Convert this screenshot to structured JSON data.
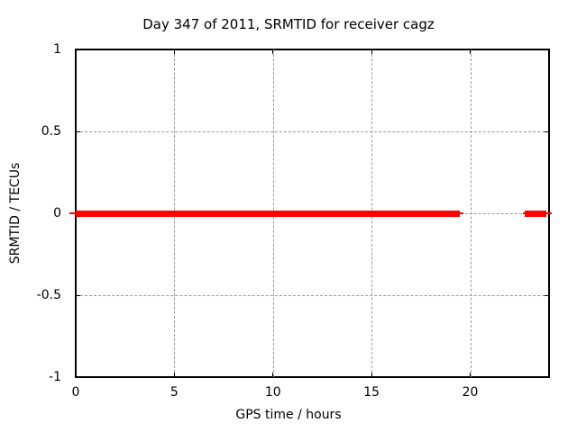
{
  "chart_data": {
    "type": "line",
    "title": "Day 347 of 2011, SRMTID for receiver cagz",
    "xlabel": "GPS time / hours",
    "ylabel": "SRMTID / TECUs",
    "xlim": [
      0,
      24
    ],
    "ylim": [
      -1,
      1
    ],
    "xticks": {
      "values": [
        0,
        5,
        10,
        15,
        20
      ],
      "labels": [
        "0",
        "5",
        "10",
        "15",
        "20"
      ]
    },
    "yticks": {
      "values": [
        1,
        0.5,
        0,
        -0.5,
        -1
      ],
      "labels": [
        "1",
        "0.5",
        "0",
        "-0.5",
        "-1"
      ]
    },
    "grid": true,
    "grid_x": [
      5,
      10,
      15,
      20
    ],
    "grid_y": [
      0.5,
      0,
      -0.5
    ],
    "legend": "none",
    "series": [
      {
        "name": "SRMTID",
        "color": "#ff0000",
        "style": "thick horizontal segments with thin whisker ends, constant value",
        "segments": [
          {
            "y": 0,
            "x": [
              0,
              19.48
            ],
            "whisker_x": [
              -0.32,
              19.66
            ]
          },
          {
            "y": 0,
            "x": [
              22.77,
              23.87
            ],
            "whisker_x": [
              22.67,
              24.14
            ]
          }
        ]
      }
    ],
    "colors": {
      "line": "#ff0000",
      "grid": "#999999",
      "border": "#000000",
      "background": "#ffffff",
      "text": "#000000"
    }
  }
}
